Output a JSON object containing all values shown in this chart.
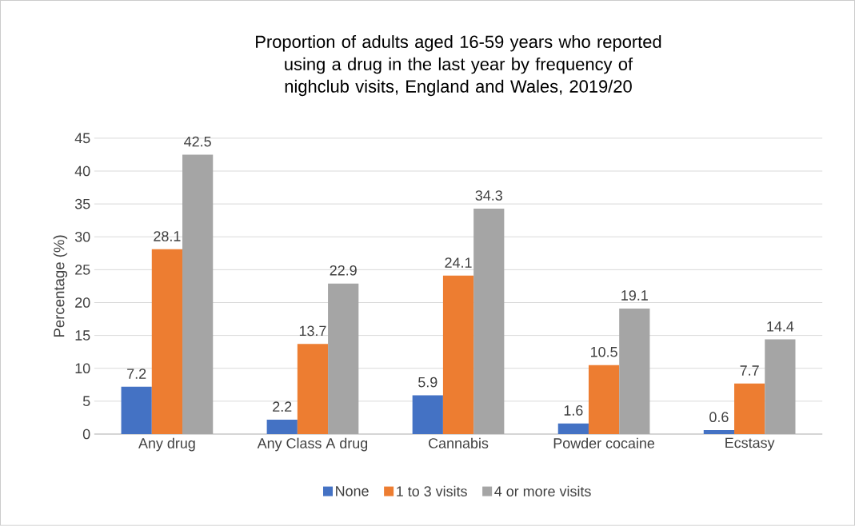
{
  "chart_data": {
    "type": "bar",
    "title": "Proportion of adults aged 16-59 years who reported using a drug in the last year by frequency of nighclub visits, England and Wales, 2019/20",
    "ylabel": "Percentage (%)",
    "categories": [
      "Any drug",
      "Any Class A drug",
      "Cannabis",
      "Powder cocaine",
      "Ecstasy"
    ],
    "series": [
      {
        "name": "None",
        "color": "#4472c4",
        "values": [
          7.2,
          2.2,
          5.9,
          1.6,
          0.6
        ]
      },
      {
        "name": "1 to 3 visits",
        "color": "#ed7d31",
        "values": [
          28.1,
          13.7,
          24.1,
          10.5,
          7.7
        ]
      },
      {
        "name": "4 or more visits",
        "color": "#a5a5a5",
        "values": [
          42.5,
          22.9,
          34.3,
          19.1,
          14.4
        ]
      }
    ],
    "ylim": [
      0,
      45
    ],
    "yticks": [
      0,
      5,
      10,
      15,
      20,
      25,
      30,
      35,
      40,
      45
    ],
    "grid": "y",
    "legend": "bottom",
    "data_labels": true
  }
}
